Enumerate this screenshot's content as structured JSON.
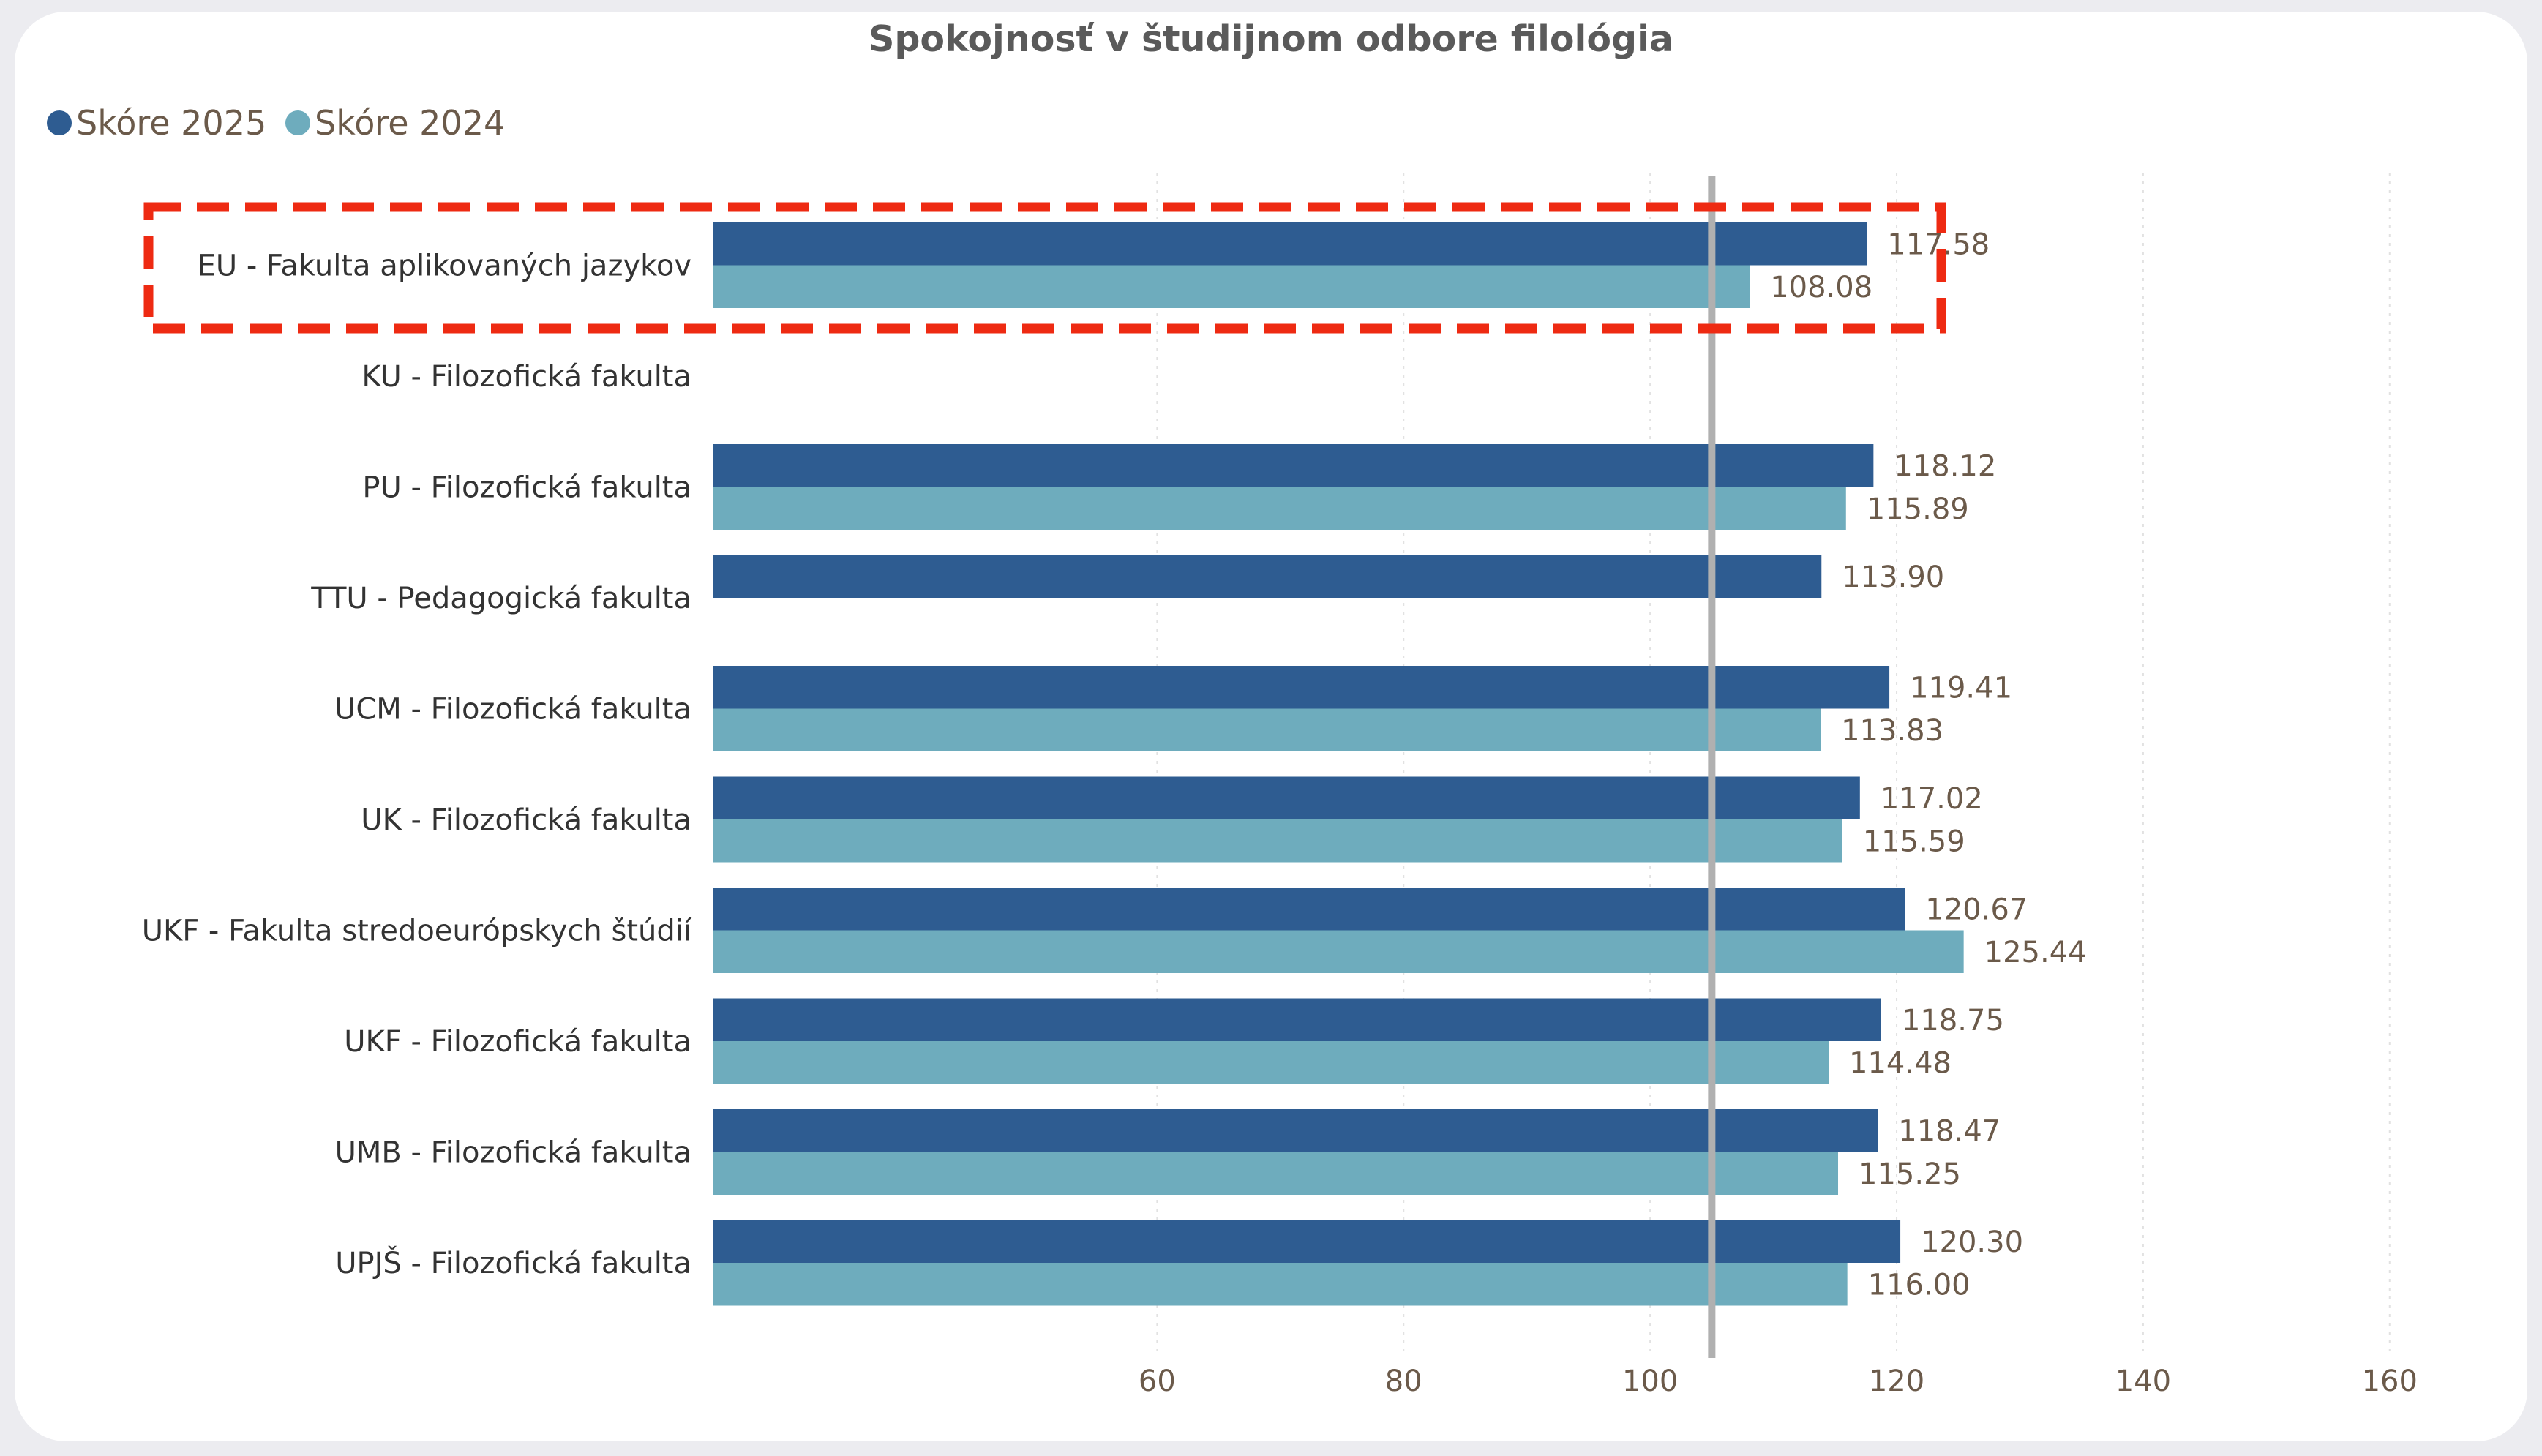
{
  "chart_data": {
    "type": "bar",
    "orientation": "horizontal",
    "title": "Spokojnosť v študijnom odbore filológia",
    "categories": [
      "EU - Fakulta aplikovaných jazykov",
      "KU - Filozofická fakulta",
      "PU - Filozofická fakulta",
      "TTU - Pedagogická fakulta",
      "UCM - Filozofická fakulta",
      "UK - Filozofická fakulta",
      "UKF - Fakulta stredoeurópskych štúdií",
      "UKF - Filozofická fakulta",
      "UMB - Filozofická fakulta",
      "UPJŠ - Filozofická fakulta"
    ],
    "series": [
      {
        "name": "Skóre 2025",
        "color": "#2e5c91",
        "values": [
          117.58,
          null,
          118.12,
          113.9,
          119.41,
          117.02,
          120.67,
          118.75,
          118.47,
          120.3
        ],
        "labels": [
          "117.58",
          "",
          "118.12",
          "113.90",
          "119.41",
          "117.02",
          "120.67",
          "118.75",
          "118.47",
          "120.30"
        ]
      },
      {
        "name": "Skóre 2024",
        "color": "#6eacbd",
        "values": [
          108.08,
          null,
          115.89,
          null,
          113.83,
          115.59,
          125.44,
          114.48,
          115.25,
          116.0
        ],
        "labels": [
          "108.08",
          "",
          "115.89",
          "",
          "113.83",
          "115.59",
          "125.44",
          "114.48",
          "115.25",
          "116.00"
        ]
      }
    ],
    "xaxis": {
      "min": 24,
      "max": 165,
      "ticks": [
        60,
        80,
        100,
        120,
        140,
        160
      ],
      "tick_labels": [
        "60",
        "80",
        "100",
        "120",
        "140",
        "160"
      ],
      "grid": true
    },
    "reference_line": {
      "value": 105,
      "color": "#b0b0b0"
    },
    "highlight": {
      "category_index": 0,
      "style": "dashed",
      "color": "#ee2a12"
    },
    "legend_position": "top-left"
  }
}
